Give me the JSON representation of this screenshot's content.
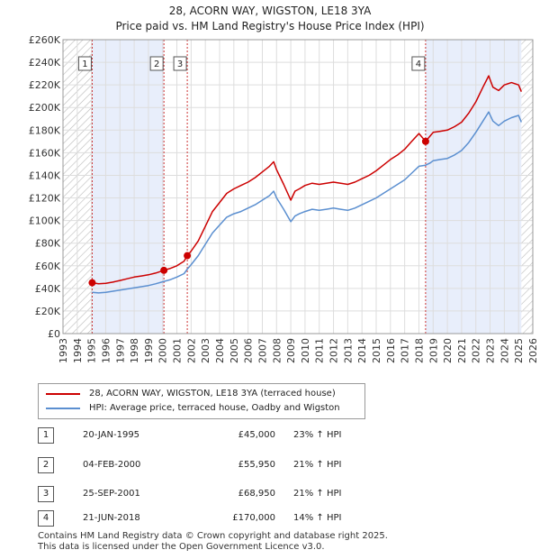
{
  "title": {
    "line1": "28, ACORN WAY, WIGSTON, LE18 3YA",
    "line2": "Price paid vs. HM Land Registry's House Price Index (HPI)"
  },
  "colors": {
    "price": "#cc0000",
    "hpi": "#5b8fd0",
    "shade": "#e8eefb",
    "grid": "#dddddd",
    "marker_line": "#cc3333"
  },
  "legend": {
    "items": [
      {
        "label": "28, ACORN WAY, WIGSTON, LE18 3YA (terraced house)",
        "color": "#cc0000"
      },
      {
        "label": "HPI: Average price, terraced house, Oadby and Wigston",
        "color": "#5b8fd0"
      }
    ]
  },
  "transactions": [
    {
      "num": "1",
      "date": "20-JAN-1995",
      "price": "£45,000",
      "hpi": "23% ↑ HPI",
      "year": 1995.05,
      "value": 45000
    },
    {
      "num": "2",
      "date": "04-FEB-2000",
      "price": "£55,950",
      "hpi": "21% ↑ HPI",
      "year": 2000.09,
      "value": 55950
    },
    {
      "num": "3",
      "date": "25-SEP-2001",
      "price": "£68,950",
      "hpi": "21% ↑ HPI",
      "year": 2001.73,
      "value": 68950
    },
    {
      "num": "4",
      "date": "21-JUN-2018",
      "price": "£170,000",
      "hpi": "14% ↑ HPI",
      "year": 2018.47,
      "value": 170000
    }
  ],
  "footer": {
    "line1": "Contains HM Land Registry data © Crown copyright and database right 2025.",
    "line2": "This data is licensed under the Open Government Licence v3.0."
  },
  "chart_data": {
    "type": "line",
    "title": "Price paid vs. HM Land Registry's House Price Index (HPI)",
    "xlabel": "",
    "ylabel": "",
    "xlim": [
      1993,
      2026
    ],
    "ylim": [
      0,
      260000
    ],
    "x_ticks": [
      "1993",
      "1994",
      "1995",
      "1996",
      "1997",
      "1998",
      "1999",
      "2000",
      "2001",
      "2002",
      "2003",
      "2004",
      "2005",
      "2006",
      "2007",
      "2008",
      "2009",
      "2010",
      "2011",
      "2012",
      "2013",
      "2014",
      "2015",
      "2016",
      "2017",
      "2018",
      "2019",
      "2020",
      "2021",
      "2022",
      "2023",
      "2024",
      "2025",
      "2026"
    ],
    "y_ticks": [
      "£0",
      "£20K",
      "£40K",
      "£60K",
      "£80K",
      "£100K",
      "£120K",
      "£140K",
      "£160K",
      "£180K",
      "£200K",
      "£220K",
      "£240K",
      "£260K"
    ],
    "shaded_ranges": [
      [
        1995.05,
        2000.09
      ],
      [
        2018.47,
        2025.2
      ]
    ],
    "hatched_ranges": [
      [
        1993,
        1995.05
      ],
      [
        2025.2,
        2026
      ]
    ],
    "series": [
      {
        "name": "28, ACORN WAY, WIGSTON, LE18 3YA (terraced house)",
        "color": "#cc0000",
        "x": [
          1995.05,
          1995.5,
          1996,
          1996.5,
          1997,
          1997.5,
          1998,
          1998.5,
          1999,
          1999.5,
          2000.09,
          2000.5,
          2001,
          2001.5,
          2001.73,
          2002,
          2002.5,
          2003,
          2003.5,
          2004,
          2004.5,
          2005,
          2005.5,
          2006,
          2006.5,
          2007,
          2007.5,
          2007.8,
          2008,
          2008.5,
          2009,
          2009.3,
          2009.6,
          2010,
          2010.5,
          2011,
          2011.5,
          2012,
          2012.5,
          2013,
          2013.5,
          2014,
          2014.5,
          2015,
          2015.5,
          2016,
          2016.5,
          2017,
          2017.5,
          2018,
          2018.47,
          2018.8,
          2019,
          2019.5,
          2020,
          2020.5,
          2021,
          2021.5,
          2022,
          2022.5,
          2022.9,
          2023.2,
          2023.6,
          2024,
          2024.5,
          2025,
          2025.2
        ],
        "y": [
          45000,
          44000,
          44500,
          45500,
          47000,
          48500,
          50000,
          51000,
          52000,
          53500,
          55950,
          57500,
          60000,
          64000,
          68950,
          73000,
          82000,
          95000,
          108000,
          116000,
          124000,
          128000,
          131000,
          134000,
          138000,
          143000,
          148000,
          152000,
          145000,
          132000,
          118000,
          126000,
          128000,
          131000,
          133000,
          132000,
          133000,
          134000,
          133000,
          132000,
          134000,
          137000,
          140000,
          144000,
          149000,
          154000,
          158000,
          163000,
          170000,
          177000,
          170000,
          175000,
          178000,
          179000,
          180000,
          183000,
          187000,
          195000,
          205000,
          218000,
          228000,
          218000,
          215000,
          220000,
          222000,
          220000,
          214000
        ]
      },
      {
        "name": "HPI: Average price, terraced house, Oadby and Wigston",
        "color": "#5b8fd0",
        "x": [
          1995.05,
          1995.5,
          1996,
          1996.5,
          1997,
          1997.5,
          1998,
          1998.5,
          1999,
          1999.5,
          2000.09,
          2000.5,
          2001,
          2001.5,
          2001.73,
          2002,
          2002.5,
          2003,
          2003.5,
          2004,
          2004.5,
          2005,
          2005.5,
          2006,
          2006.5,
          2007,
          2007.5,
          2007.8,
          2008,
          2008.5,
          2009,
          2009.3,
          2009.6,
          2010,
          2010.5,
          2011,
          2011.5,
          2012,
          2012.5,
          2013,
          2013.5,
          2014,
          2014.5,
          2015,
          2015.5,
          2016,
          2016.5,
          2017,
          2017.5,
          2018,
          2018.47,
          2018.8,
          2019,
          2019.5,
          2020,
          2020.5,
          2021,
          2021.5,
          2022,
          2022.5,
          2022.9,
          2023.2,
          2023.6,
          2024,
          2024.5,
          2025,
          2025.2
        ],
        "y": [
          36500,
          36000,
          36500,
          37500,
          38500,
          39500,
          40500,
          41500,
          42500,
          44000,
          46200,
          47500,
          50000,
          53000,
          57000,
          61000,
          69000,
          79000,
          89000,
          96000,
          103000,
          106000,
          108000,
          111000,
          114000,
          118000,
          122000,
          126000,
          120000,
          110000,
          99000,
          104000,
          106000,
          108000,
          110000,
          109000,
          110000,
          111000,
          110000,
          109000,
          111000,
          114000,
          117000,
          120000,
          124000,
          128000,
          132000,
          136000,
          142000,
          148000,
          149000,
          151000,
          153000,
          154000,
          155000,
          158000,
          162000,
          169000,
          178000,
          188000,
          196000,
          188000,
          184000,
          188000,
          191000,
          193000,
          187000
        ]
      }
    ]
  }
}
